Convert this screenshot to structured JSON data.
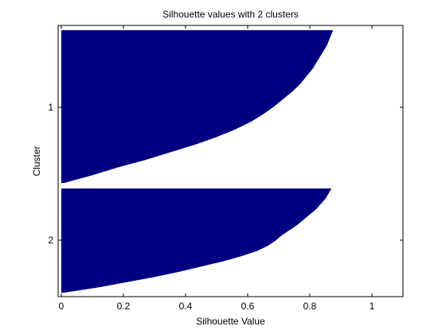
{
  "figure": {
    "background": "#ffffff"
  },
  "chart_data": {
    "type": "bar",
    "orientation": "horizontal",
    "title": "Silhouette values with 2 clusters",
    "xlabel": "Silhouette Value",
    "ylabel": "Cluster",
    "xlim": [
      -0.01,
      1.1
    ],
    "xticks": [
      0,
      0.2,
      0.4,
      0.6,
      0.8,
      1
    ],
    "xtick_labels": [
      "0",
      "0.2",
      "0.4",
      "0.6",
      "0.8",
      "1"
    ],
    "ytick_labels": [
      "1",
      "2"
    ],
    "bar_color": "#000080",
    "grid": false,
    "legend": "none",
    "series": [
      {
        "name": "1",
        "profile": [
          [
            0.0,
            0.875
          ],
          [
            0.05,
            0.865
          ],
          [
            0.1,
            0.855
          ],
          [
            0.15,
            0.84
          ],
          [
            0.2,
            0.825
          ],
          [
            0.25,
            0.81
          ],
          [
            0.3,
            0.79
          ],
          [
            0.35,
            0.77
          ],
          [
            0.4,
            0.745
          ],
          [
            0.45,
            0.715
          ],
          [
            0.5,
            0.685
          ],
          [
            0.55,
            0.65
          ],
          [
            0.6,
            0.61
          ],
          [
            0.65,
            0.56
          ],
          [
            0.7,
            0.5
          ],
          [
            0.75,
            0.43
          ],
          [
            0.8,
            0.35
          ],
          [
            0.85,
            0.27
          ],
          [
            0.9,
            0.18
          ],
          [
            0.95,
            0.1
          ],
          [
            1.0,
            0.01
          ]
        ]
      },
      {
        "name": "2",
        "profile": [
          [
            0.0,
            0.87
          ],
          [
            0.05,
            0.86
          ],
          [
            0.1,
            0.85
          ],
          [
            0.15,
            0.835
          ],
          [
            0.2,
            0.82
          ],
          [
            0.25,
            0.8
          ],
          [
            0.3,
            0.78
          ],
          [
            0.35,
            0.76
          ],
          [
            0.4,
            0.735
          ],
          [
            0.45,
            0.71
          ],
          [
            0.5,
            0.69
          ],
          [
            0.55,
            0.665
          ],
          [
            0.6,
            0.63
          ],
          [
            0.65,
            0.58
          ],
          [
            0.7,
            0.52
          ],
          [
            0.75,
            0.45
          ],
          [
            0.8,
            0.38
          ],
          [
            0.85,
            0.3
          ],
          [
            0.9,
            0.21
          ],
          [
            0.95,
            0.12
          ],
          [
            1.0,
            0.01
          ]
        ]
      }
    ]
  }
}
